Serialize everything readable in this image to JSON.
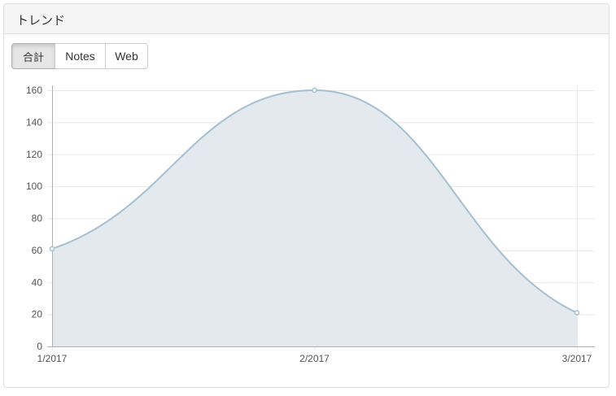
{
  "panel": {
    "title": "トレンド"
  },
  "filters": {
    "buttons": [
      {
        "label": "合計",
        "active": true
      },
      {
        "label": "Notes",
        "active": false
      },
      {
        "label": "Web",
        "active": false
      }
    ]
  },
  "colors": {
    "line": "#a4c0cf",
    "fill": "#e4e9ee",
    "grid": "#e8e8e8",
    "axis": "#b0b0b0"
  },
  "chart_data": {
    "type": "area",
    "categories": [
      "1/2017",
      "2/2017",
      "3/2017"
    ],
    "series": [
      {
        "values": [
          61,
          160,
          21
        ]
      }
    ],
    "ylim": [
      0,
      160
    ],
    "yticks": [
      0,
      20,
      40,
      60,
      80,
      100,
      120,
      140,
      160
    ],
    "grid": true,
    "smooth": true
  }
}
